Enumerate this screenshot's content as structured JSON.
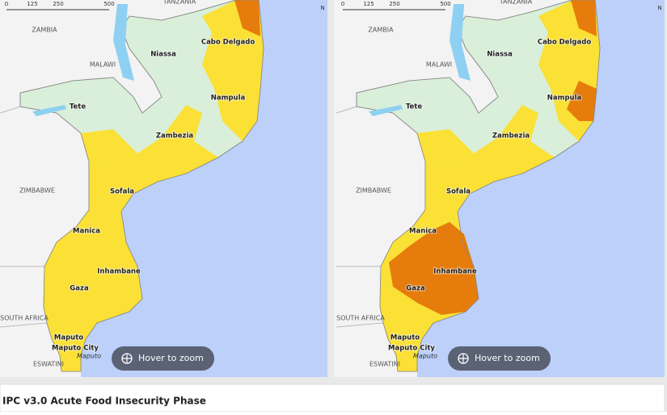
{
  "maps": [
    {
      "scale": [
        "0",
        "125",
        "250",
        "500"
      ],
      "north": "N",
      "countries": [
        "TANZANIA",
        "ZAMBIA",
        "MALAWI",
        "ZIMBABWE",
        "SOUTH AFRICA",
        "ESWATINI"
      ],
      "provinces": [
        "Niassa",
        "Cabo Delgado",
        "Nampula",
        "Tete",
        "Zambezia",
        "Sofala",
        "Manica",
        "Inhambane",
        "Gaza",
        "Maputo",
        "Maputo City"
      ],
      "cities": [
        "Maputo"
      ],
      "button": "Hover to zoom"
    },
    {
      "scale": [
        "0",
        "125",
        "250",
        "500"
      ],
      "north": "N",
      "countries": [
        "TANZANIA",
        "ZAMBIA",
        "MALAWI",
        "ZIMBABWE",
        "SOUTH AFRICA",
        "ESWATINI"
      ],
      "provinces": [
        "Niassa",
        "Cabo Delgado",
        "Nampula",
        "Tete",
        "Zambezia",
        "Sofala",
        "Manica",
        "Inhambane",
        "Gaza",
        "Maputo",
        "Maputo City"
      ],
      "cities": [
        "Maputo"
      ],
      "button": "Hover to zoom"
    }
  ],
  "legend_title": "IPC v3.0 Acute Food Insecurity Phase"
}
